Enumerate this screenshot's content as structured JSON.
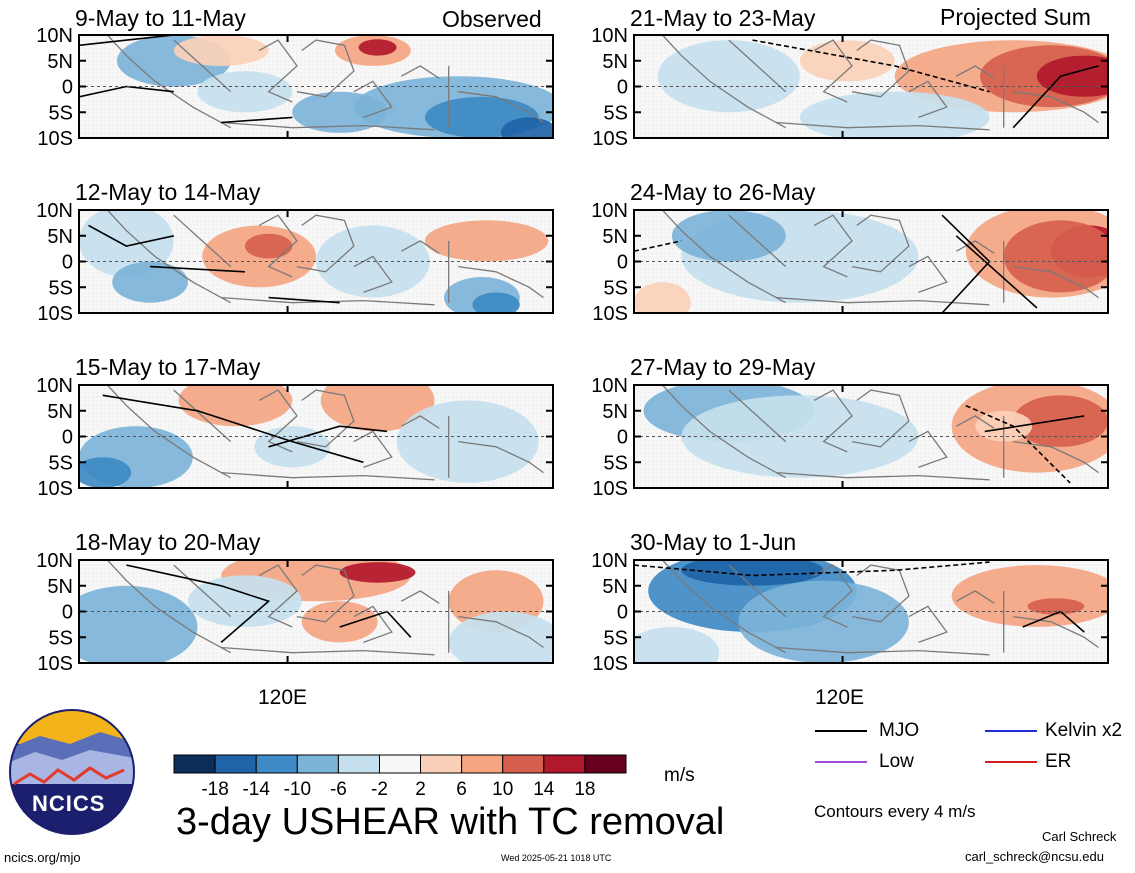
{
  "figure": {
    "title": "3-day USHEAR with TC removal",
    "units": "m/s",
    "observed_label": "Observed",
    "projected_label": "Projected Sum",
    "x_tick_label": "120E",
    "y_tick_labels": [
      "10N",
      "5N",
      "0",
      "5S",
      "10S"
    ],
    "contour_note": "Contours every 4 m/s",
    "source_url": "ncics.org/mjo",
    "timestamp": "Wed 2025-05-21 1018 UTC",
    "author": "Carl Schreck",
    "email": "carl_schreck@ncsu.edu",
    "logo_text": "NCICS"
  },
  "colorbar": {
    "tick_labels": [
      "-18",
      "-14",
      "-10",
      "-6",
      "-2",
      "2",
      "6",
      "10",
      "14",
      "18"
    ],
    "colors": [
      "#0b2e59",
      "#1f63a8",
      "#3f8ac4",
      "#7cb3d8",
      "#c5dfee",
      "#f7f7f7",
      "#fbd0b9",
      "#f4a582",
      "#d6604d",
      "#b2182b",
      "#67001f"
    ]
  },
  "legend": {
    "items": [
      {
        "label": "MJO",
        "color": "#000000"
      },
      {
        "label": "Kelvin x2",
        "color": "#1f2fd6"
      },
      {
        "label": "Low",
        "color": "#9b4fd8"
      },
      {
        "label": "ER",
        "color": "#d62020"
      }
    ]
  },
  "chart_data": [
    {
      "type": "heatmap",
      "title": "9-May to 11-May",
      "column": "Observed",
      "ylim": [
        -10,
        10
      ],
      "x_tick": "120E"
    },
    {
      "type": "heatmap",
      "title": "12-May to 14-May",
      "column": "Observed",
      "ylim": [
        -10,
        10
      ],
      "x_tick": "120E"
    },
    {
      "type": "heatmap",
      "title": "15-May to 17-May",
      "column": "Observed",
      "ylim": [
        -10,
        10
      ],
      "x_tick": "120E"
    },
    {
      "type": "heatmap",
      "title": "18-May to 20-May",
      "column": "Observed",
      "ylim": [
        -10,
        10
      ],
      "x_tick": "120E"
    },
    {
      "type": "heatmap",
      "title": "21-May to 23-May",
      "column": "Projected Sum",
      "ylim": [
        -10,
        10
      ],
      "x_tick": "120E"
    },
    {
      "type": "heatmap",
      "title": "24-May to 26-May",
      "column": "Projected Sum",
      "ylim": [
        -10,
        10
      ],
      "x_tick": "120E"
    },
    {
      "type": "heatmap",
      "title": "27-May to 29-May",
      "column": "Projected Sum",
      "ylim": [
        -10,
        10
      ],
      "x_tick": "120E"
    },
    {
      "type": "heatmap",
      "title": "30-May to 1-Jun",
      "column": "Projected Sum",
      "ylim": [
        -10,
        10
      ],
      "x_tick": "120E"
    }
  ]
}
